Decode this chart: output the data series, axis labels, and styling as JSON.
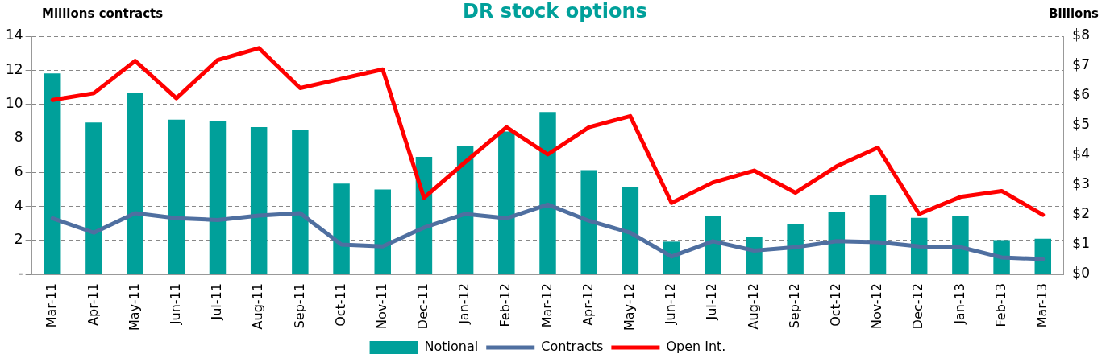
{
  "chart_data": {
    "type": "bar",
    "title": "DR stock options",
    "ylabel": "Millions contracts",
    "y2label": "Billions",
    "categories": [
      "Mar-11",
      "Apr-11",
      "May-11",
      "Jun-11",
      "Jul-11",
      "Aug-11",
      "Sep-11",
      "Oct-11",
      "Nov-11",
      "Dec-11",
      "Jan-12",
      "Feb-12",
      "Mar-12",
      "Apr-12",
      "May-12",
      "Jun-12",
      "Jul-12",
      "Aug-12",
      "Sep-12",
      "Oct-12",
      "Nov-12",
      "Dec-12",
      "Jan-13",
      "Feb-13",
      "Mar-13"
    ],
    "series": [
      {
        "name": "Notional",
        "axis": "y2",
        "color": "#00a09a",
        "values": [
          6.75,
          5.1,
          6.1,
          5.2,
          5.15,
          4.95,
          4.85,
          3.05,
          2.85,
          3.95,
          4.3,
          4.8,
          5.45,
          3.5,
          2.95,
          1.1,
          1.95,
          1.25,
          1.7,
          2.1,
          2.65,
          1.9,
          1.95,
          1.15,
          1.2
        ]
      },
      {
        "name": "Contracts",
        "type": "line",
        "color": "#4f6fa0",
        "values": [
          3.3,
          2.45,
          3.6,
          3.3,
          3.2,
          3.45,
          3.6,
          1.75,
          1.65,
          2.75,
          3.55,
          3.3,
          4.1,
          3.15,
          2.45,
          1.05,
          1.95,
          1.4,
          1.6,
          1.95,
          1.9,
          1.65,
          1.6,
          1.0,
          0.9
        ]
      },
      {
        "name": "Open Int.",
        "type": "line",
        "color": "#ff0000",
        "values": [
          10.25,
          10.65,
          12.55,
          10.35,
          12.6,
          13.3,
          10.95,
          11.5,
          12.05,
          4.5,
          6.6,
          8.65,
          7.05,
          8.65,
          9.3,
          4.2,
          5.4,
          6.1,
          4.8,
          6.35,
          7.45,
          3.55,
          4.55,
          4.9,
          3.5
        ]
      }
    ],
    "ylim": [
      0,
      14
    ],
    "yticks": [
      {
        "value": 0,
        "label": "-"
      },
      2,
      4,
      6,
      8,
      10,
      12,
      14
    ],
    "y2lim": [
      0,
      8
    ],
    "y2ticks": [
      {
        "value": 0,
        "label": "$0"
      },
      {
        "value": 1,
        "label": "$1"
      },
      {
        "value": 2,
        "label": "$2"
      },
      {
        "value": 3,
        "label": "$3"
      },
      {
        "value": 4,
        "label": "$4"
      },
      {
        "value": 5,
        "label": "$5"
      },
      {
        "value": 6,
        "label": "$6"
      },
      {
        "value": 7,
        "label": "$7"
      },
      {
        "value": 8,
        "label": "$8"
      }
    ],
    "grid": "y",
    "legend": "bottom",
    "marker": "none",
    "line_style": "solid"
  }
}
